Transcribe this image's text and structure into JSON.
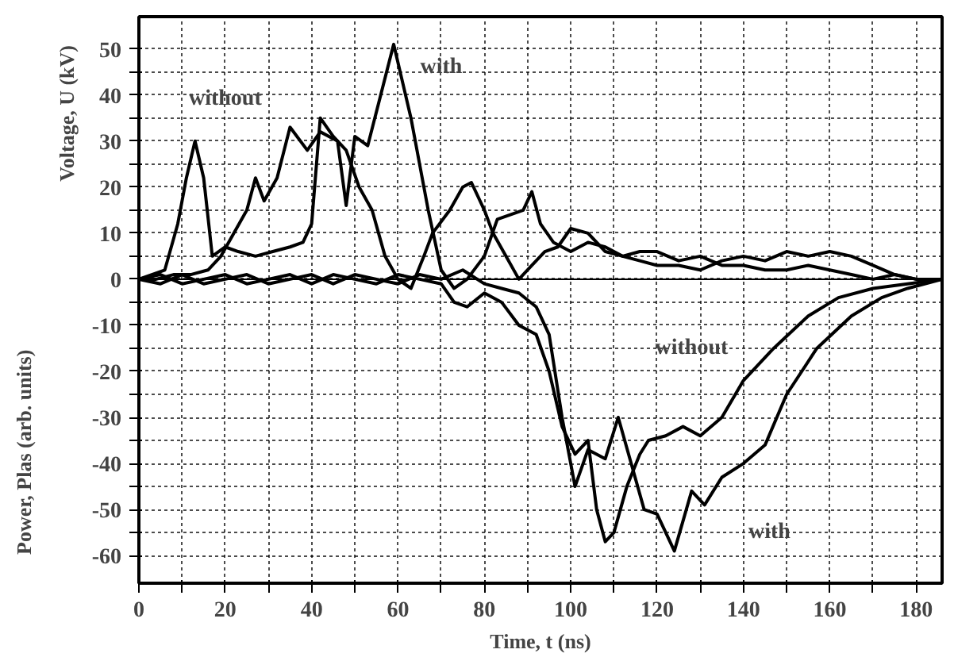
{
  "chart_data": {
    "type": "line",
    "xlabel": "Time, t (ns)",
    "ylabel": "Voltage, U (kV)",
    "xlim": [
      0,
      186
    ],
    "ylim": [
      -66,
      57
    ],
    "xticks": [
      0,
      {
        "value": 10,
        "label": null
      },
      20,
      {
        "value": 30,
        "label": null
      },
      40,
      {
        "value": 50,
        "label": null
      },
      60,
      {
        "value": 70,
        "label": null
      },
      80,
      {
        "value": 90,
        "label": null
      },
      100,
      {
        "value": 110,
        "label": null
      },
      120,
      {
        "value": 130,
        "label": null
      },
      140,
      {
        "value": 150,
        "label": null
      },
      160,
      {
        "value": 170,
        "label": null
      },
      180
    ],
    "yticks": [
      -60,
      {
        "value": -55,
        "label": null
      },
      -50,
      {
        "value": -45,
        "label": null
      },
      -40,
      {
        "value": -35,
        "label": null
      },
      -30,
      {
        "value": -25,
        "label": null
      },
      -20,
      {
        "value": -15,
        "label": null
      },
      -10,
      {
        "value": -5,
        "label": null
      },
      0,
      {
        "value": 5,
        "label": null
      },
      10,
      {
        "value": 15,
        "label": null
      },
      20,
      {
        "value": 25,
        "label": null
      },
      30,
      {
        "value": 35,
        "label": null
      },
      40,
      {
        "value": 45,
        "label": null
      },
      50
    ],
    "grid": true,
    "line_style": "solid",
    "marker": "none",
    "ref_lines": [
      {
        "axis": "y",
        "value": 0,
        "label": null,
        "color": "#000000"
      }
    ],
    "series": [
      {
        "color": "#000000",
        "x": [
          0,
          3,
          6,
          9,
          11,
          13,
          15,
          17,
          20,
          23,
          27,
          31,
          35,
          38,
          40,
          42,
          45,
          48,
          51,
          54,
          57,
          60,
          63,
          66,
          68,
          72,
          75,
          77,
          80,
          82,
          85,
          88,
          91,
          94,
          97,
          100,
          104,
          108,
          112,
          116,
          120,
          125,
          130,
          135,
          140,
          145,
          150,
          155,
          160,
          165,
          170,
          175,
          180,
          186
        ],
        "values": [
          0,
          1,
          2,
          12,
          22,
          30,
          22,
          5,
          7,
          6,
          5,
          6,
          7,
          8,
          12,
          35,
          31,
          28,
          20,
          15,
          5,
          0,
          -2,
          5,
          10,
          15,
          20,
          21,
          15,
          10,
          5,
          0,
          3,
          6,
          7,
          11,
          10,
          6,
          5,
          6,
          6,
          4,
          5,
          3,
          3,
          2,
          2,
          3,
          2,
          1,
          0,
          1,
          0,
          0
        ]
      },
      {
        "color": "#000000",
        "x": [
          0,
          4,
          8,
          12,
          16,
          19,
          22,
          25,
          27,
          29,
          32,
          35,
          39,
          42,
          46,
          48,
          50,
          53,
          56,
          59,
          63,
          67,
          70,
          73,
          76,
          80,
          83,
          86,
          89,
          91,
          93,
          96,
          100,
          104,
          108,
          112,
          116,
          120,
          125,
          130,
          135,
          140,
          145,
          150,
          155,
          160,
          165,
          170,
          175,
          180,
          186
        ],
        "values": [
          0,
          0,
          1,
          1,
          2,
          5,
          10,
          15,
          22,
          17,
          22,
          33,
          28,
          32,
          30,
          16,
          31,
          29,
          40,
          51,
          35,
          15,
          2,
          -2,
          0,
          5,
          13,
          14,
          15,
          19,
          12,
          8,
          6,
          8,
          7,
          5,
          4,
          3,
          3,
          2,
          4,
          5,
          4,
          6,
          5,
          6,
          5,
          3,
          1,
          0,
          0
        ]
      },
      {
        "color": "#000000",
        "x": [
          0,
          5,
          10,
          15,
          20,
          25,
          30,
          35,
          40,
          45,
          50,
          55,
          60,
          65,
          70,
          73,
          76,
          80,
          84,
          88,
          92,
          95,
          98,
          101,
          104,
          106,
          108,
          110,
          113,
          116,
          118,
          122,
          126,
          130,
          135,
          140,
          147,
          155,
          162,
          170,
          178,
          186
        ],
        "values": [
          0,
          1,
          -1,
          0,
          1,
          -1,
          0,
          1,
          -1,
          1,
          0,
          -1,
          1,
          0,
          -1,
          -5,
          -6,
          -3,
          -5,
          -10,
          -12,
          -20,
          -32,
          -38,
          -35,
          -50,
          -57,
          -55,
          -45,
          -38,
          -35,
          -34,
          -32,
          -34,
          -30,
          -22,
          -15,
          -8,
          -4,
          -2,
          -1,
          0
        ]
      },
      {
        "color": "#000000",
        "x": [
          0,
          5,
          10,
          15,
          20,
          25,
          30,
          35,
          40,
          45,
          50,
          55,
          60,
          65,
          70,
          75,
          80,
          84,
          88,
          92,
          95,
          98,
          101,
          104,
          106,
          108,
          111,
          114,
          117,
          120,
          124,
          128,
          131,
          135,
          140,
          145,
          150,
          157,
          165,
          172,
          178,
          186
        ],
        "values": [
          0,
          -1,
          1,
          -1,
          0,
          1,
          -1,
          0,
          1,
          -1,
          1,
          0,
          -1,
          1,
          0,
          2,
          -1,
          -2,
          -3,
          -6,
          -12,
          -30,
          -45,
          -37,
          -38,
          -39,
          -30,
          -40,
          -50,
          -51,
          -59,
          -46,
          -49,
          -43,
          -40,
          -36,
          -25,
          -15,
          -8,
          -4,
          -2,
          0
        ]
      }
    ],
    "annotations": [
      "without",
      "with",
      "without",
      "with",
      "Power, Plas (arb. units)"
    ]
  }
}
